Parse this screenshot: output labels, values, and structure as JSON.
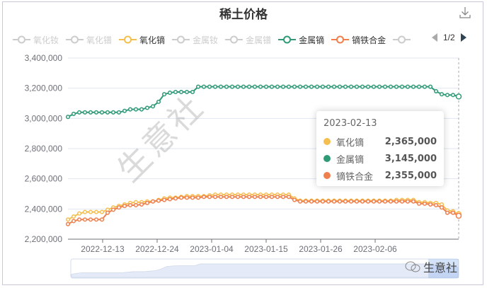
{
  "title": "稀土价格",
  "download_icon": "download-icon",
  "legend": {
    "items": [
      {
        "label": "氧化钕",
        "color": "#cccccc",
        "active": false
      },
      {
        "label": "氧化镨",
        "color": "#cccccc",
        "active": false
      },
      {
        "label": "氧化镝",
        "color": "#f5bf4f",
        "active": true
      },
      {
        "label": "金属钕",
        "color": "#cccccc",
        "active": false
      },
      {
        "label": "金属镨",
        "color": "#cccccc",
        "active": false
      },
      {
        "label": "金属镝",
        "color": "#2e9a77",
        "active": true
      },
      {
        "label": "镝铁合金",
        "color": "#f07f4e",
        "active": true
      },
      {
        "label": "",
        "color": "#cccccc",
        "active": false
      }
    ],
    "page": "1/2"
  },
  "tooltip": {
    "date": "2023-02-13",
    "rows": [
      {
        "name": "氧化镝",
        "value": "2,365,000",
        "color": "#f5bf4f"
      },
      {
        "name": "金属镝",
        "value": "3,145,000",
        "color": "#2e9a77"
      },
      {
        "name": "镝铁合金",
        "value": "2,355,000",
        "color": "#f07f4e"
      }
    ]
  },
  "watermark": "生意社",
  "footer_brand": "生意社",
  "chart_data": {
    "type": "line",
    "title": "稀土价格",
    "xlabel": "",
    "ylabel": "",
    "ylim": [
      2200000,
      3400000
    ],
    "yticks": [
      2200000,
      2400000,
      2600000,
      2800000,
      3000000,
      3200000,
      3400000
    ],
    "ytick_labels": [
      "2,200,000",
      "2,400,000",
      "2,600,000",
      "2,800,000",
      "3,000,000",
      "3,200,000",
      "3,400,000"
    ],
    "xtick_labels": [
      "2022-12-13",
      "2022-12-24",
      "2023-01-04",
      "2023-01-15",
      "2023-01-26",
      "2023-02-06"
    ],
    "grid": true,
    "legend_position": "top",
    "x_start": "2022-12-06",
    "x_end": "2023-02-13",
    "series": [
      {
        "name": "氧化镝",
        "color": "#f5bf4f",
        "values": [
          2330000,
          2350000,
          2370000,
          2380000,
          2380000,
          2380000,
          2380000,
          2395000,
          2410000,
          2420000,
          2430000,
          2440000,
          2445000,
          2445000,
          2450000,
          2450000,
          2460000,
          2470000,
          2475000,
          2475000,
          2480000,
          2485000,
          2485000,
          2485000,
          2485000,
          2490000,
          2495000,
          2495000,
          2495000,
          2495000,
          2495000,
          2495000,
          2495000,
          2495000,
          2495000,
          2495000,
          2495000,
          2495000,
          2495000,
          2495000,
          2470000,
          2455000,
          2455000,
          2455000,
          2455000,
          2455000,
          2455000,
          2455000,
          2455000,
          2455000,
          2455000,
          2455000,
          2455000,
          2455000,
          2455000,
          2455000,
          2455000,
          2455000,
          2460000,
          2460000,
          2460000,
          2460000,
          2445000,
          2445000,
          2440000,
          2440000,
          2430000,
          2390000,
          2385000,
          2365000
        ]
      },
      {
        "name": "金属镝",
        "color": "#2e9a77",
        "values": [
          3010000,
          3030000,
          3040000,
          3040000,
          3040000,
          3040000,
          3040000,
          3040000,
          3040000,
          3040000,
          3050000,
          3060000,
          3060000,
          3060000,
          3070000,
          3080000,
          3110000,
          3160000,
          3170000,
          3175000,
          3175000,
          3175000,
          3175000,
          3210000,
          3210000,
          3210000,
          3210000,
          3210000,
          3210000,
          3210000,
          3210000,
          3210000,
          3210000,
          3210000,
          3210000,
          3210000,
          3210000,
          3210000,
          3210000,
          3210000,
          3210000,
          3210000,
          3210000,
          3210000,
          3210000,
          3210000,
          3210000,
          3210000,
          3210000,
          3210000,
          3210000,
          3210000,
          3210000,
          3210000,
          3210000,
          3210000,
          3210000,
          3210000,
          3210000,
          3210000,
          3210000,
          3210000,
          3210000,
          3210000,
          3210000,
          3180000,
          3160000,
          3155000,
          3155000,
          3145000
        ]
      },
      {
        "name": "镝铁合金",
        "color": "#f07f4e",
        "values": [
          2300000,
          2320000,
          2330000,
          2330000,
          2330000,
          2330000,
          2330000,
          2375000,
          2395000,
          2410000,
          2420000,
          2425000,
          2425000,
          2430000,
          2440000,
          2450000,
          2455000,
          2460000,
          2465000,
          2470000,
          2475000,
          2475000,
          2475000,
          2475000,
          2480000,
          2480000,
          2480000,
          2480000,
          2480000,
          2480000,
          2480000,
          2480000,
          2480000,
          2480000,
          2480000,
          2480000,
          2480000,
          2480000,
          2480000,
          2480000,
          2460000,
          2450000,
          2450000,
          2450000,
          2450000,
          2450000,
          2450000,
          2450000,
          2450000,
          2450000,
          2450000,
          2450000,
          2450000,
          2450000,
          2450000,
          2450000,
          2450000,
          2450000,
          2450000,
          2450000,
          2450000,
          2450000,
          2435000,
          2435000,
          2430000,
          2425000,
          2410000,
          2375000,
          2375000,
          2355000
        ]
      }
    ]
  }
}
